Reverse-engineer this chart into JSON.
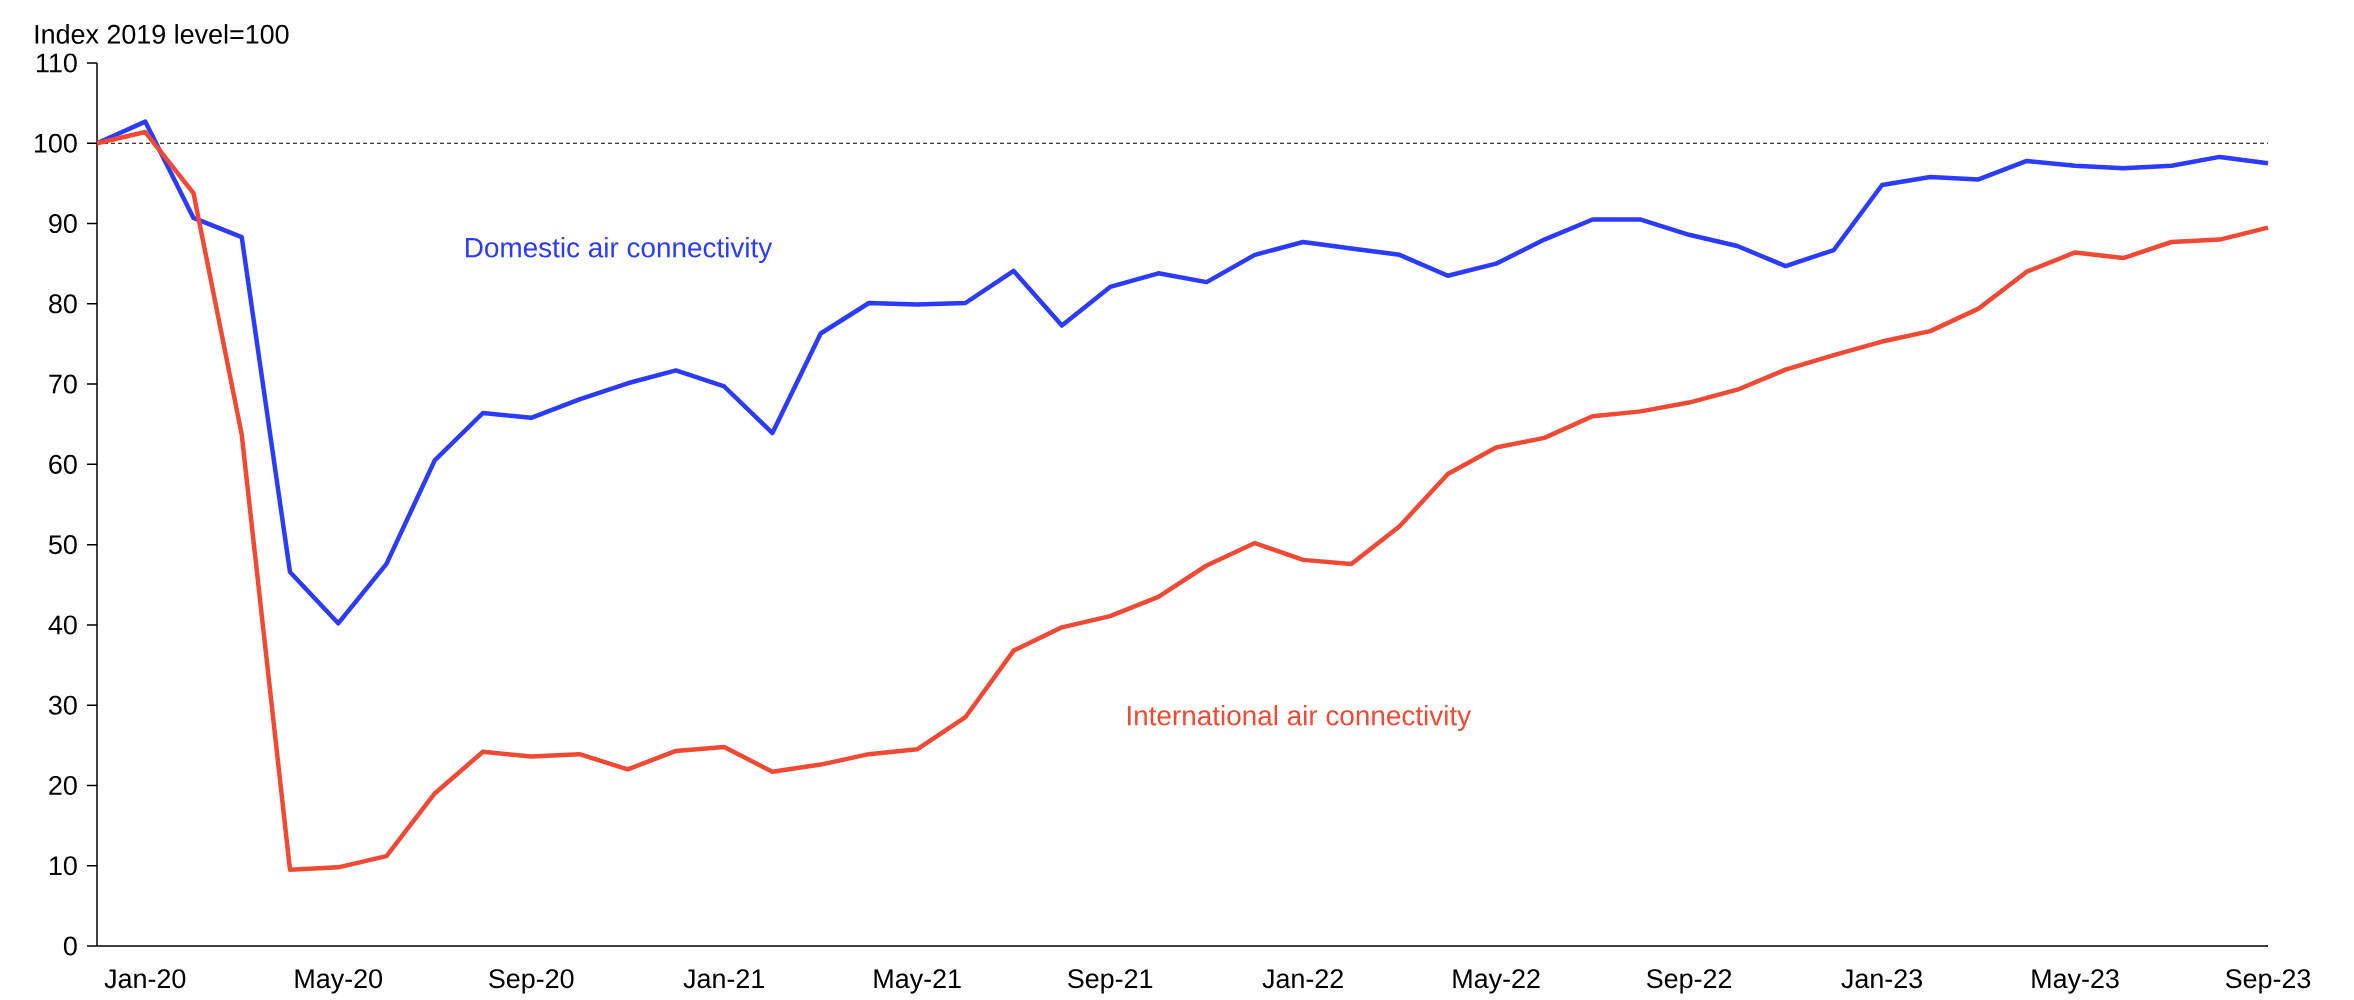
{
  "chart_data": {
    "type": "line",
    "ylabel": "Index 2019 level=100",
    "categories": [
      null,
      "Jan-20",
      null,
      null,
      null,
      "May-20",
      null,
      null,
      null,
      "Sep-20",
      null,
      null,
      null,
      "Jan-21",
      null,
      null,
      null,
      "May-21",
      null,
      null,
      null,
      "Sep-21",
      null,
      null,
      null,
      "Jan-22",
      null,
      null,
      null,
      "May-22",
      null,
      null,
      null,
      "Sep-22",
      null,
      null,
      null,
      "Jan-23",
      null,
      null,
      null,
      "May-23",
      null,
      null,
      null,
      "Sep-23"
    ],
    "series": [
      {
        "name": "Domestic air connectivity",
        "color": "#2b3bff",
        "values": [
          100,
          102.7,
          90.7,
          88.3,
          46.6,
          40.2,
          47.6,
          60.5,
          66.4,
          65.8,
          68.1,
          70.1,
          71.7,
          69.7,
          63.9,
          76.3,
          80.1,
          79.9,
          80.1,
          84.1,
          77.3,
          82.1,
          83.8,
          82.7,
          86.1,
          87.7,
          86.9,
          86.1,
          83.5,
          85.0,
          88.0,
          90.5,
          90.5,
          88.6,
          87.2,
          84.7,
          86.7,
          94.8,
          95.8,
          95.5,
          97.8,
          97.2,
          96.9,
          97.2,
          98.3,
          97.5
        ]
      },
      {
        "name": "International air connectivity",
        "color": "#f04a35",
        "values": [
          100,
          101.4,
          93.8,
          63.7,
          9.5,
          9.8,
          11.2,
          19.0,
          24.2,
          23.6,
          23.9,
          22.0,
          24.3,
          24.8,
          21.7,
          22.6,
          23.9,
          24.5,
          28.5,
          36.8,
          39.7,
          41.1,
          43.5,
          47.4,
          50.2,
          48.1,
          47.6,
          52.3,
          58.8,
          62.1,
          63.3,
          66.0,
          66.6,
          67.7,
          69.3,
          71.8,
          73.6,
          75.3,
          76.6,
          79.4,
          84.0,
          86.4,
          85.7,
          87.7,
          88.0,
          89.5
        ]
      }
    ],
    "ylim": [
      0,
      110
    ],
    "yticks": [
      0,
      10,
      20,
      30,
      40,
      50,
      60,
      70,
      80,
      90,
      100,
      110
    ],
    "ref_lines": [
      {
        "axis": "y",
        "value": 100,
        "color": "#000000",
        "line_style": "dashed"
      }
    ],
    "grid": false,
    "legend": false,
    "marker": "none",
    "line_style": "solid"
  }
}
